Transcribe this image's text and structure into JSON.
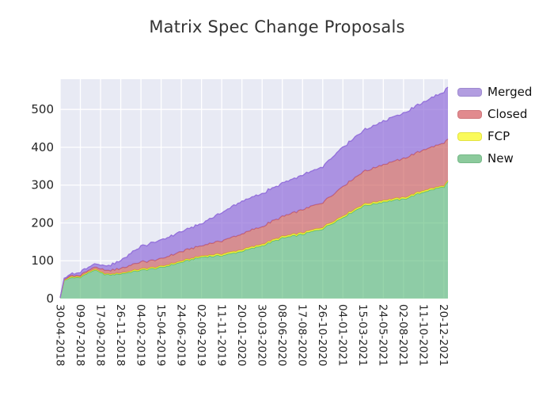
{
  "title": "Matrix Spec Change Proposals",
  "chart_data": {
    "type": "area",
    "stacked": true,
    "title": "Matrix Spec Change Proposals",
    "xlabel": "",
    "ylabel": "",
    "grid": true,
    "legend_position": "upper-right-outside",
    "background_color": "#e8eaf4",
    "grid_color": "#ffffff",
    "tick_text_color": "#262626",
    "x_tick_labels": [
      "30-04-2018",
      "09-07-2018",
      "17-09-2018",
      "26-11-2018",
      "04-02-2019",
      "15-04-2019",
      "24-06-2019",
      "02-09-2019",
      "11-11-2019",
      "20-01-2020",
      "30-03-2020",
      "08-06-2020",
      "17-08-2020",
      "26-10-2020",
      "04-01-2021",
      "15-03-2021",
      "24-05-2021",
      "02-08-2021",
      "11-10-2021",
      "20-12-2021"
    ],
    "x_tick_interval_weeks": 10,
    "y_ticks": [
      0,
      100,
      200,
      300,
      400,
      500
    ],
    "ylim": [
      0,
      580
    ],
    "x_pos_max": 19.2,
    "anchor_pos": [
      0,
      0.2,
      0.5,
      1,
      1.7,
      2,
      2.4,
      3,
      4,
      5,
      6,
      7,
      8,
      9,
      10,
      11,
      12,
      13,
      14,
      15,
      16,
      17,
      18,
      19,
      19.2
    ],
    "series": [
      {
        "name": "New",
        "fill": "rgba(82,183,113,0.60)",
        "edge": "#52b771",
        "jitter": 2.0,
        "values": [
          2,
          48,
          54,
          57,
          76,
          68,
          62,
          66,
          75,
          82,
          96,
          110,
          114,
          125,
          140,
          160,
          170,
          185,
          215,
          245,
          256,
          263,
          282,
          296,
          308
        ]
      },
      {
        "name": "FCP",
        "fill": "rgba(245,245,35,0.80)",
        "edge": "#e0e02a",
        "jitter": 0.3,
        "values": [
          0,
          1,
          2,
          2,
          2,
          2,
          2,
          2,
          3,
          3,
          3,
          3,
          4,
          4,
          4,
          4,
          4,
          4,
          4,
          4,
          4,
          4,
          4,
          3,
          3
        ]
      },
      {
        "name": "Closed",
        "fill": "rgba(205,92,92,0.65)",
        "edge": "#cd5c5c",
        "jitter": 1.2,
        "values": [
          0,
          2,
          3,
          4,
          6,
          8,
          10,
          12,
          19,
          20,
          25,
          27,
          35,
          42,
          47,
          53,
          61,
          65,
          78,
          86,
          95,
          103,
          108,
          112,
          110
        ]
      },
      {
        "name": "Merged",
        "fill": "rgba(147,112,219,0.72)",
        "edge": "#9370db",
        "jitter": 1.5,
        "values": [
          0,
          3,
          4,
          8,
          9,
          9,
          12,
          21,
          41,
          50,
          52,
          58,
          75,
          86,
          87,
          87,
          91,
          95,
          104,
          108,
          115,
          119,
          126,
          135,
          137
        ]
      }
    ],
    "legend": [
      {
        "label": "Merged",
        "swatch": "#b29de0",
        "swatch_edge": "#9f8ad0"
      },
      {
        "label": "Closed",
        "swatch": "#e18a8e",
        "swatch_edge": "#d0777c"
      },
      {
        "label": "FCP",
        "swatch": "#fafa5a",
        "swatch_edge": "#e3e342"
      },
      {
        "label": "New",
        "swatch": "#8cca9c",
        "swatch_edge": "#76b988"
      }
    ]
  }
}
